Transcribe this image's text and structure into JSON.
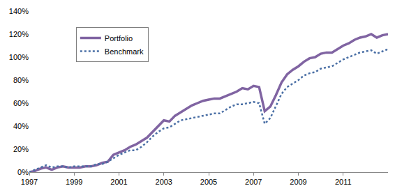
{
  "chart_data": {
    "type": "line",
    "x": [
      1997,
      1997.25,
      1997.5,
      1997.75,
      1998,
      1998.25,
      1998.5,
      1998.75,
      1999,
      1999.25,
      1999.5,
      1999.75,
      2000,
      2000.25,
      2000.5,
      2000.75,
      2001,
      2001.25,
      2001.5,
      2001.75,
      2002,
      2002.25,
      2002.5,
      2002.75,
      2003,
      2003.25,
      2003.5,
      2003.75,
      2004,
      2004.25,
      2004.5,
      2004.75,
      2005,
      2005.25,
      2005.5,
      2005.75,
      2006,
      2006.25,
      2006.5,
      2006.75,
      2007,
      2007.25,
      2007.5,
      2007.75,
      2008,
      2008.25,
      2008.5,
      2008.75,
      2009,
      2009.25,
      2009.5,
      2009.75,
      2010,
      2010.25,
      2010.5,
      2010.75,
      2011,
      2011.25,
      2011.5,
      2011.75,
      2012,
      2012.25,
      2012.5,
      2012.75,
      2013
    ],
    "series": [
      {
        "name": "Portfolio",
        "color": "#8064a2",
        "line_style": "solid",
        "values": [
          0,
          1,
          3,
          4,
          2,
          4,
          5,
          4,
          4,
          4,
          5,
          5,
          6,
          8,
          9,
          15,
          17,
          19,
          22,
          24,
          27,
          30,
          35,
          40,
          45,
          44,
          49,
          52,
          55,
          58,
          60,
          62,
          63,
          64,
          64,
          66,
          68,
          70,
          73,
          72,
          75,
          74,
          53,
          57,
          67,
          78,
          85,
          89,
          92,
          96,
          99,
          100,
          103,
          104,
          104,
          107,
          110,
          112,
          115,
          117,
          118,
          120,
          117,
          119,
          120
        ]
      },
      {
        "name": "Benchmark",
        "color": "#4a6fa5",
        "line_style": "dotted",
        "values": [
          0,
          2,
          4,
          6,
          4,
          5,
          5,
          4,
          5,
          5,
          5,
          5,
          7,
          7,
          9,
          12,
          15,
          17,
          19,
          19,
          22,
          26,
          31,
          35,
          38,
          39,
          42,
          45,
          46,
          47,
          48,
          49,
          50,
          51,
          51,
          54,
          57,
          59,
          59,
          60,
          61,
          60,
          42,
          47,
          57,
          68,
          74,
          77,
          80,
          84,
          86,
          87,
          90,
          91,
          92,
          95,
          98,
          100,
          102,
          104,
          105,
          106,
          103,
          105,
          107
        ]
      }
    ],
    "xlim": [
      1997,
      2013
    ],
    "xticks": [
      1997,
      1999,
      2001,
      2003,
      2005,
      2007,
      2009,
      2011
    ],
    "ylim": [
      0,
      140
    ],
    "yticks": [
      {
        "value": 0,
        "label": "0%"
      },
      {
        "value": 20,
        "label": "20%"
      },
      {
        "value": 40,
        "label": "40%"
      },
      {
        "value": 60,
        "label": "60%"
      },
      {
        "value": 80,
        "label": "80%"
      },
      {
        "value": 100,
        "label": "100%"
      },
      {
        "value": 120,
        "label": "120%"
      },
      {
        "value": 140,
        "label": "140%"
      }
    ],
    "grid": false,
    "legend": "upper left"
  }
}
